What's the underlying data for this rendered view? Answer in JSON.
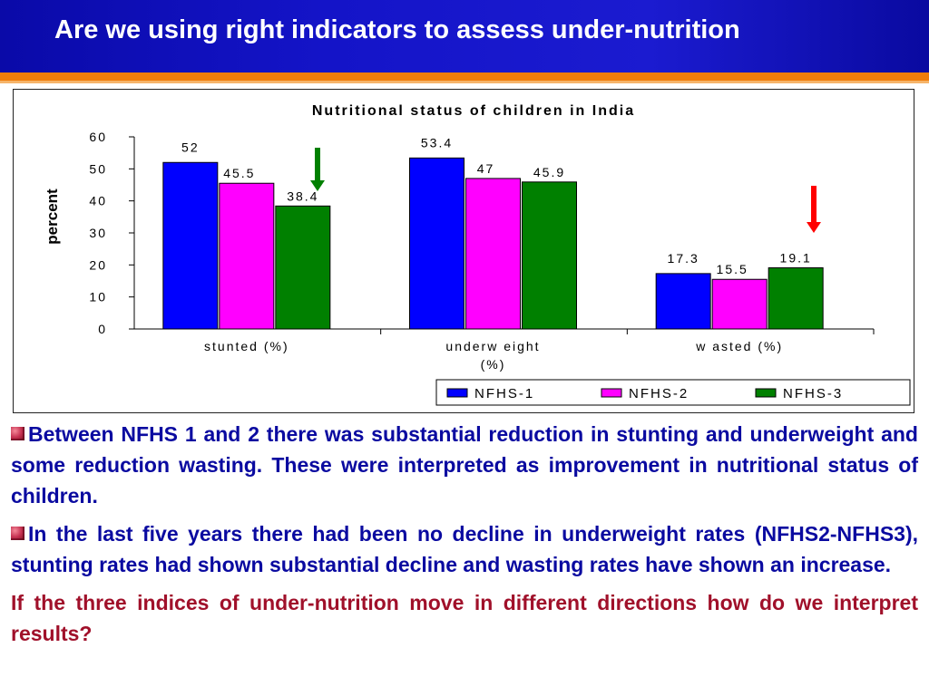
{
  "slide": {
    "title": "Are we using right indicators to assess under-nutrition"
  },
  "chart_data": {
    "type": "bar",
    "title": "Nutritional status of children in India",
    "ylabel": "percent",
    "xlabel": "",
    "ylim": [
      0,
      60
    ],
    "yticks": [
      0,
      10,
      20,
      30,
      40,
      50,
      60
    ],
    "categories": [
      [
        "stunted (%)"
      ],
      [
        "underw eight",
        "(%)"
      ],
      [
        "w asted (%)"
      ]
    ],
    "series": [
      {
        "name": "NFHS-1",
        "color": "#0000ff",
        "values": [
          52,
          53.4,
          17.3
        ],
        "labels": [
          "52",
          "53.4",
          "17.3"
        ]
      },
      {
        "name": "NFHS-2",
        "color": "#ff00ff",
        "values": [
          45.5,
          47,
          15.5
        ],
        "labels": [
          "45.5",
          "47",
          "15.5"
        ]
      },
      {
        "name": "NFHS-3",
        "color": "#008000",
        "values": [
          38.4,
          45.9,
          19.1
        ],
        "labels": [
          "38.4",
          "45.9",
          "19.1"
        ]
      }
    ],
    "legend_position": "bottom-right",
    "grid": false,
    "annotations": [
      {
        "type": "arrow",
        "direction": "down",
        "color": "#008000",
        "near": "stunted NFHS-3"
      },
      {
        "type": "arrow",
        "direction": "down",
        "color": "#ff0000",
        "near": "wasted NFHS-3"
      }
    ]
  },
  "body": {
    "bullet_icon": "flower-bullet-icon",
    "bullets": [
      "Between NFHS 1 and 2 there was substantial reduction in stunting and underweight and some reduction wasting. These were interpreted as  improvement in nutritional status of children.",
      "In the last five years there had been no decline in underweight rates (NFHS2-NFHS3), stunting rates had shown substantial decline and wasting rates have shown an increase."
    ],
    "question": "If the three indices of under-nutrition move in different directions how do we interpret results?"
  },
  "colors": {
    "title_bar": "#1414c8",
    "title_rule": "#f07d0a",
    "bullet_text": "#0a0aa0",
    "question_text": "#a0102a"
  }
}
